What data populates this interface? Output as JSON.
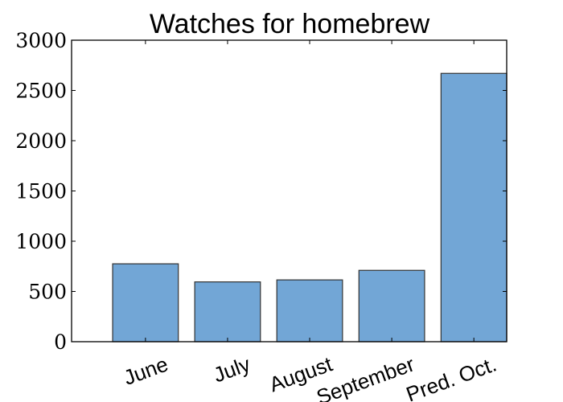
{
  "chart_data": {
    "type": "bar",
    "title": "Watches for homebrew",
    "xlabel": "",
    "ylabel": "",
    "categories": [
      "June",
      "July",
      "August",
      "September",
      "Pred. Oct."
    ],
    "values": [
      775,
      595,
      615,
      710,
      2670
    ],
    "ylim": [
      0,
      3000
    ],
    "yticks": [
      0,
      500,
      1000,
      1500,
      2000,
      2500,
      3000
    ],
    "ytick_labels": [
      "0",
      "500",
      "1000",
      "1500",
      "2000",
      "2500",
      "3000"
    ],
    "grid": false,
    "legend": "none",
    "colors": {
      "bar_fill": "#72a6d6",
      "bar_edge": "#333333",
      "axes": "#000000"
    }
  }
}
